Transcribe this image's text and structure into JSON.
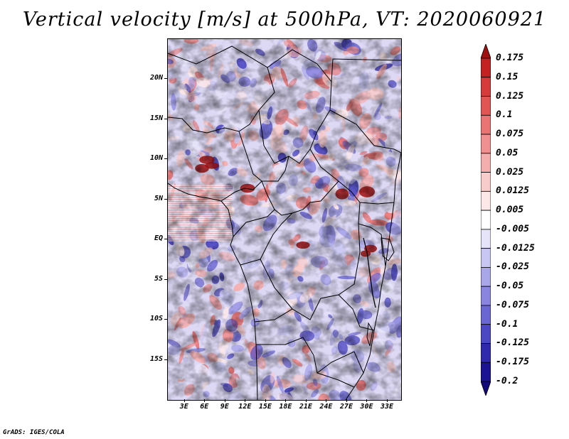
{
  "title": "Vertical velocity [m/s] at 500hPa, VT: 2020060921",
  "credit": "GrADS: IGES/COLA",
  "map": {
    "lat_labels": [
      "20N",
      "15N",
      "10N",
      "5N",
      "EQ",
      "5S",
      "10S",
      "15S"
    ],
    "lat_values": [
      20,
      15,
      10,
      5,
      0,
      -5,
      -10,
      -15
    ],
    "lon_labels": [
      "3E",
      "6E",
      "9E",
      "12E",
      "15E",
      "18E",
      "21E",
      "24E",
      "27E",
      "30E",
      "33E"
    ],
    "lon_values": [
      3,
      6,
      9,
      12,
      15,
      18,
      21,
      24,
      27,
      30,
      33
    ],
    "extent": {
      "lon_min": 0.5,
      "lon_max": 35,
      "lat_min": -20,
      "lat_max": 25
    }
  },
  "colorbar": {
    "labels": [
      "0.175",
      "0.15",
      "0.125",
      "0.1",
      "0.075",
      "0.05",
      "0.025",
      "0.0125",
      "0.005",
      "-0.005",
      "-0.0125",
      "-0.025",
      "-0.05",
      "-0.075",
      "-0.1",
      "-0.125",
      "-0.175",
      "-0.2"
    ],
    "colors": [
      "#a01010",
      "#c42222",
      "#d63a3a",
      "#e25555",
      "#ea7373",
      "#f09090",
      "#f5aeae",
      "#f9cccc",
      "#fde8e8",
      "#ffffff",
      "#e6e4f8",
      "#c8c6f2",
      "#a9a6ea",
      "#8a86e0",
      "#6a66d4",
      "#4c47c4",
      "#3129ad",
      "#1c1394",
      "#120a7a"
    ]
  },
  "colors": {
    "positive": "#e05050",
    "negative": "#5a55d8",
    "border": "#000000"
  }
}
